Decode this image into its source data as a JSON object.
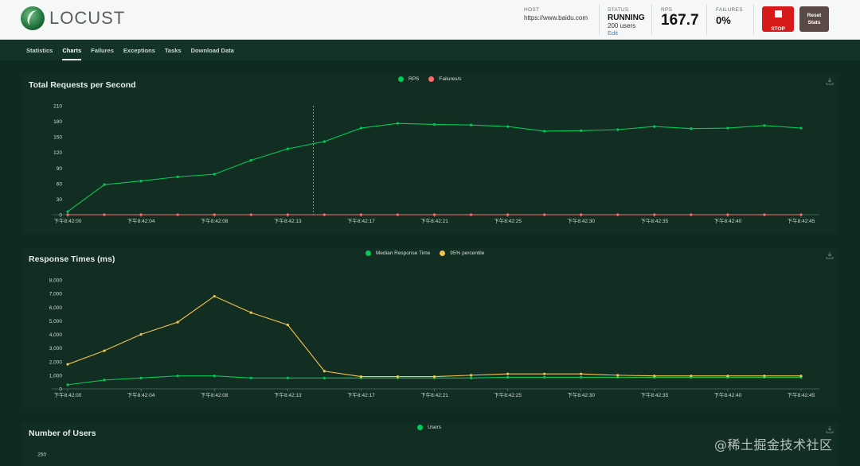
{
  "brand": {
    "logo_text": "LOCUST"
  },
  "header": {
    "host_label": "HOST",
    "host_value": "https://www.baidu.com",
    "status_label": "STATUS",
    "status_value": "RUNNING",
    "users_text": "200 users",
    "edit_label": "Edit",
    "rps_label": "RPS",
    "rps_value": "167.7",
    "failures_label": "FAILURES",
    "failures_value": "0%",
    "stop_label": "STOP",
    "reset_label_1": "Reset",
    "reset_label_2": "Stats"
  },
  "tabs": [
    {
      "label": "Statistics"
    },
    {
      "label": "Charts"
    },
    {
      "label": "Failures"
    },
    {
      "label": "Exceptions"
    },
    {
      "label": "Tasks"
    },
    {
      "label": "Download Data"
    }
  ],
  "colors": {
    "green": "#00ca5a",
    "red": "#ff6d6d",
    "yellow": "#f5c54b",
    "accent_red": "#d61b1b"
  },
  "chart_data": [
    {
      "type": "line",
      "title": "Total Requests per Second",
      "x": [
        "下午8:42:00",
        "下午8:42:02",
        "下午8:42:04",
        "下午8:42:06",
        "下午8:42:08",
        "下午8:42:10",
        "下午8:42:13",
        "下午8:42:15",
        "下午8:42:17",
        "下午8:42:19",
        "下午8:42:21",
        "下午8:42:23",
        "下午8:42:25",
        "下午8:42:27",
        "下午8:42:30",
        "下午8:42:32",
        "下午8:42:35",
        "下午8:42:37",
        "下午8:42:40",
        "下午8:42:42",
        "下午8:42:45"
      ],
      "xticks": [
        "下午8:42:00",
        "下午8:42:04",
        "下午8:42:08",
        "下午8:42:13",
        "下午8:42:17",
        "下午8:42:21",
        "下午8:42:25",
        "下午8:42:30",
        "下午8:42:35",
        "下午8:42:40",
        "下午8:42:45"
      ],
      "yticks": [
        0,
        30,
        60,
        90,
        120,
        150,
        180,
        210
      ],
      "ylim": [
        0,
        210
      ],
      "series": [
        {
          "name": "RPS",
          "color": "#00ca5a",
          "values": [
            6,
            58,
            65,
            73,
            78,
            105,
            127,
            141,
            167,
            176,
            174,
            173,
            170,
            161,
            162,
            164,
            170,
            166,
            167,
            172,
            167
          ]
        },
        {
          "name": "Failures/s",
          "color": "#ff6d6d",
          "values": [
            0,
            0,
            0,
            0,
            0,
            0,
            0,
            0,
            0,
            0,
            0,
            0,
            0,
            0,
            0,
            0,
            0,
            0,
            0,
            0,
            0
          ]
        }
      ],
      "cursor_index": 6.7
    },
    {
      "type": "line",
      "title": "Response Times (ms)",
      "x": [
        "下午8:42:00",
        "下午8:42:02",
        "下午8:42:04",
        "下午8:42:06",
        "下午8:42:08",
        "下午8:42:10",
        "下午8:42:13",
        "下午8:42:15",
        "下午8:42:17",
        "下午8:42:19",
        "下午8:42:21",
        "下午8:42:23",
        "下午8:42:25",
        "下午8:42:27",
        "下午8:42:30",
        "下午8:42:32",
        "下午8:42:35",
        "下午8:42:37",
        "下午8:42:40",
        "下午8:42:42",
        "下午8:42:45"
      ],
      "xticks": [
        "下午8:42:00",
        "下午8:42:04",
        "下午8:42:08",
        "下午8:42:13",
        "下午8:42:17",
        "下午8:42:21",
        "下午8:42:25",
        "下午8:42:30",
        "下午8:42:35",
        "下午8:42:40",
        "下午8:42:45"
      ],
      "yticks": [
        "0",
        "1,000",
        "2,000",
        "3,000",
        "4,000",
        "5,000",
        "6,000",
        "7,000",
        "8,000"
      ],
      "ylim": [
        0,
        8000
      ],
      "series": [
        {
          "name": "Median Response Time",
          "color": "#00ca5a",
          "values": [
            300,
            650,
            800,
            950,
            950,
            800,
            800,
            800,
            800,
            800,
            800,
            800,
            850,
            850,
            850,
            850,
            850,
            850,
            850,
            850,
            850
          ]
        },
        {
          "name": "95% percentile",
          "color": "#f5c54b",
          "values": [
            1800,
            2800,
            4000,
            4900,
            6800,
            5600,
            4700,
            1300,
            900,
            900,
            900,
            1000,
            1100,
            1100,
            1100,
            1000,
            950,
            950,
            950,
            950,
            950
          ]
        }
      ]
    },
    {
      "type": "line",
      "title": "Number of Users",
      "yticks": [
        250
      ],
      "series": [
        {
          "name": "Users",
          "color": "#00ca5a",
          "values": []
        }
      ]
    }
  ],
  "watermark": "@稀土掘金技术社区"
}
